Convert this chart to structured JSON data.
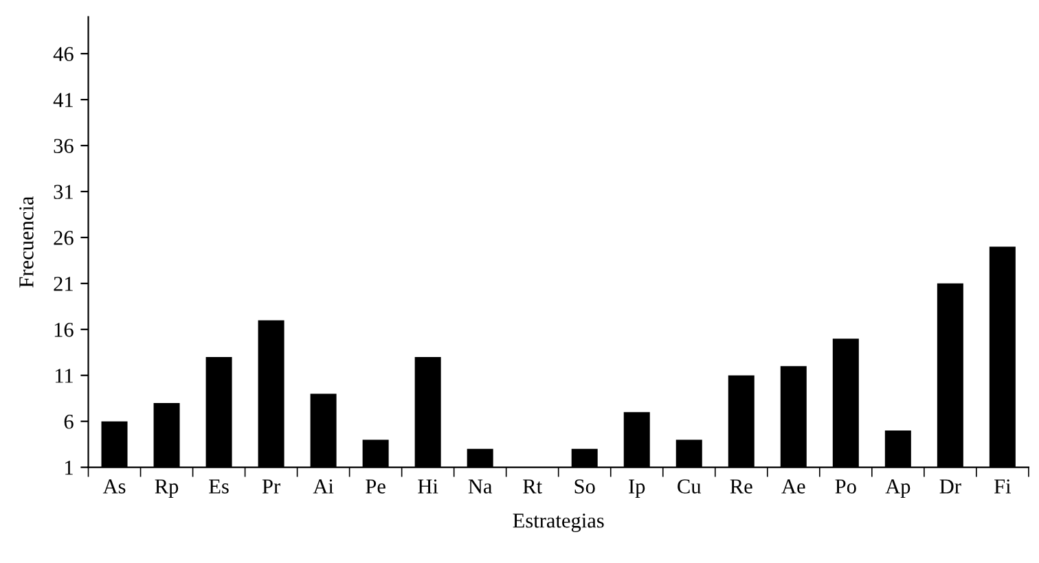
{
  "chart_data": {
    "type": "bar",
    "xlabel": "Estrategias",
    "ylabel": "Frecuencia",
    "categories": [
      "As",
      "Rp",
      "Es",
      "Pr",
      "Ai",
      "Pe",
      "Hi",
      "Na",
      "Rt",
      "So",
      "Ip",
      "Cu",
      "Re",
      "Ae",
      "Po",
      "Ap",
      "Dr",
      "Fi"
    ],
    "values": [
      6,
      8,
      13,
      17,
      9,
      4,
      13,
      3,
      1,
      3,
      7,
      4,
      11,
      12,
      15,
      5,
      21,
      25
    ],
    "color": "#000000",
    "ylim": [
      1,
      50
    ],
    "yticks": [
      1,
      6,
      11,
      16,
      21,
      26,
      31,
      36,
      41,
      46
    ],
    "grid": false,
    "legend": false
  }
}
